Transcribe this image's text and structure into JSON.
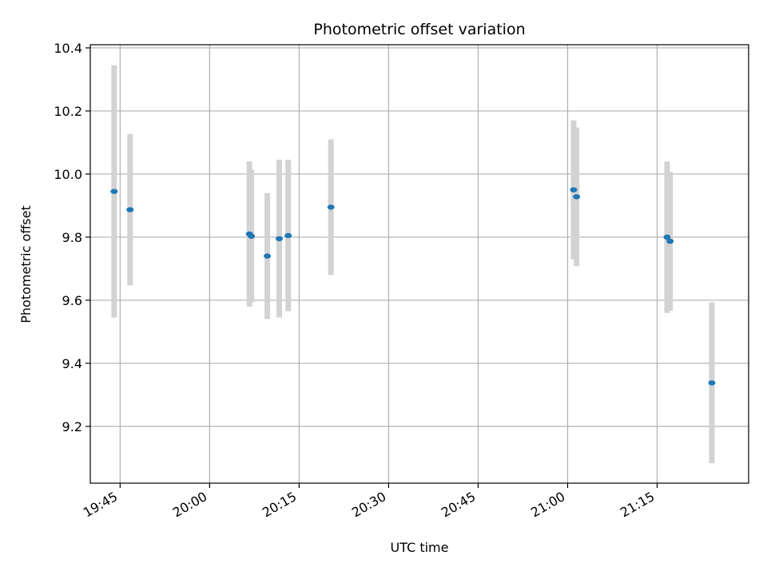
{
  "chart_data": {
    "type": "scatter",
    "title": "Photometric offset variation",
    "xlabel": "UTC time",
    "ylabel": "Photometric offset",
    "x_tick_labels": [
      "19:45",
      "20:00",
      "20:15",
      "20:30",
      "20:45",
      "21:00",
      "21:15"
    ],
    "y_tick_labels": [
      "9.2",
      "9.4",
      "9.6",
      "9.8",
      "10.0",
      "10.2",
      "10.4"
    ],
    "x_ticks": [
      "19:45",
      "20:00",
      "20:15",
      "20:30",
      "20:45",
      "21:00",
      "21:15"
    ],
    "y_ticks": [
      9.2,
      9.4,
      9.6,
      9.8,
      10.0,
      10.2,
      10.4
    ],
    "xlim": [
      "19:40:00",
      "21:30:20"
    ],
    "ylim": [
      9.02,
      10.41
    ],
    "grid": true,
    "errorbars": true,
    "colors": {
      "marker": "#1f77b4",
      "errorbar": "#d3d3d3",
      "grid": "#b0b0b0"
    },
    "points": [
      {
        "time": "19:44:00",
        "value": 9.945,
        "err": 0.4
      },
      {
        "time": "19:46:40",
        "value": 9.887,
        "err": 0.24
      },
      {
        "time": "20:06:40",
        "value": 9.81,
        "err": 0.23
      },
      {
        "time": "20:07:00",
        "value": 9.803,
        "err": 0.21
      },
      {
        "time": "20:09:40",
        "value": 9.74,
        "err": 0.2
      },
      {
        "time": "20:11:40",
        "value": 9.795,
        "err": 0.25
      },
      {
        "time": "20:13:10",
        "value": 9.805,
        "err": 0.24
      },
      {
        "time": "20:20:20",
        "value": 9.895,
        "err": 0.215
      },
      {
        "time": "21:01:00",
        "value": 9.95,
        "err": 0.22
      },
      {
        "time": "21:01:30",
        "value": 9.928,
        "err": 0.22
      },
      {
        "time": "21:16:40",
        "value": 9.8,
        "err": 0.24
      },
      {
        "time": "21:17:10",
        "value": 9.787,
        "err": 0.22
      },
      {
        "time": "21:24:10",
        "value": 9.338,
        "err": 0.255
      }
    ]
  }
}
